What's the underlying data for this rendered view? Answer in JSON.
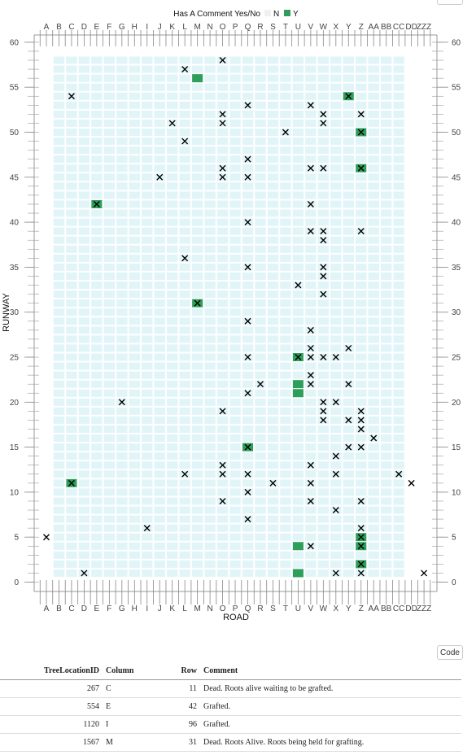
{
  "chart_data": {
    "type": "scatter",
    "legend": {
      "title": "Has A Comment Yes/No",
      "entries": [
        {
          "label": "N",
          "color": "#f0f0f0"
        },
        {
          "label": "Y",
          "color": "#2e9e5b"
        }
      ],
      "placement": "top"
    },
    "xlabel": "ROAD",
    "ylabel": "RUNWAY",
    "categories": [
      "A",
      "B",
      "C",
      "D",
      "E",
      "F",
      "G",
      "H",
      "I",
      "J",
      "K",
      "L",
      "M",
      "N",
      "O",
      "P",
      "Q",
      "R",
      "S",
      "T",
      "U",
      "V",
      "W",
      "X",
      "Y",
      "Z",
      "AA",
      "BB",
      "CC",
      "DD",
      "ZZZ"
    ],
    "ylim": [
      0,
      60
    ],
    "yticks": [
      0,
      5,
      10,
      15,
      20,
      25,
      30,
      35,
      40,
      45,
      50,
      55,
      60
    ],
    "grid_rows": [
      1,
      58
    ],
    "grid_cols": [
      "B",
      "CC"
    ],
    "colors": {
      "grid_cell": "#e1f5f8",
      "comment_yes": "#2e9e5b",
      "marker": "#000000"
    },
    "comment_cells": [
      {
        "x": "C",
        "y": 11
      },
      {
        "x": "E",
        "y": 42
      },
      {
        "x": "M",
        "y": 31
      },
      {
        "x": "M",
        "y": 56
      },
      {
        "x": "Q",
        "y": 15
      },
      {
        "x": "U",
        "y": 1
      },
      {
        "x": "U",
        "y": 4
      },
      {
        "x": "U",
        "y": 21
      },
      {
        "x": "U",
        "y": 22
      },
      {
        "x": "U",
        "y": 25
      },
      {
        "x": "Y",
        "y": 54
      },
      {
        "x": "Z",
        "y": 2
      },
      {
        "x": "Z",
        "y": 4
      },
      {
        "x": "Z",
        "y": 5
      },
      {
        "x": "Z",
        "y": 46
      },
      {
        "x": "Z",
        "y": 50
      }
    ],
    "x_markers": [
      {
        "x": "A",
        "y": 5
      },
      {
        "x": "C",
        "y": 11
      },
      {
        "x": "C",
        "y": 54
      },
      {
        "x": "D",
        "y": 1
      },
      {
        "x": "E",
        "y": 42
      },
      {
        "x": "G",
        "y": 20
      },
      {
        "x": "I",
        "y": 6
      },
      {
        "x": "J",
        "y": 45
      },
      {
        "x": "K",
        "y": 51
      },
      {
        "x": "L",
        "y": 12
      },
      {
        "x": "L",
        "y": 36
      },
      {
        "x": "L",
        "y": 49
      },
      {
        "x": "L",
        "y": 57
      },
      {
        "x": "M",
        "y": 31
      },
      {
        "x": "O",
        "y": 9
      },
      {
        "x": "O",
        "y": 12
      },
      {
        "x": "O",
        "y": 13
      },
      {
        "x": "O",
        "y": 19
      },
      {
        "x": "O",
        "y": 45
      },
      {
        "x": "O",
        "y": 46
      },
      {
        "x": "O",
        "y": 51
      },
      {
        "x": "O",
        "y": 52
      },
      {
        "x": "O",
        "y": 58
      },
      {
        "x": "Q",
        "y": 7
      },
      {
        "x": "Q",
        "y": 10
      },
      {
        "x": "Q",
        "y": 12
      },
      {
        "x": "Q",
        "y": 15
      },
      {
        "x": "Q",
        "y": 21
      },
      {
        "x": "Q",
        "y": 25
      },
      {
        "x": "Q",
        "y": 29
      },
      {
        "x": "Q",
        "y": 35
      },
      {
        "x": "Q",
        "y": 40
      },
      {
        "x": "Q",
        "y": 45
      },
      {
        "x": "Q",
        "y": 47
      },
      {
        "x": "Q",
        "y": 53
      },
      {
        "x": "R",
        "y": 22
      },
      {
        "x": "S",
        "y": 11
      },
      {
        "x": "T",
        "y": 50
      },
      {
        "x": "U",
        "y": 25
      },
      {
        "x": "U",
        "y": 33
      },
      {
        "x": "V",
        "y": 4
      },
      {
        "x": "V",
        "y": 9
      },
      {
        "x": "V",
        "y": 11
      },
      {
        "x": "V",
        "y": 13
      },
      {
        "x": "V",
        "y": 22
      },
      {
        "x": "V",
        "y": 23
      },
      {
        "x": "V",
        "y": 25
      },
      {
        "x": "V",
        "y": 26
      },
      {
        "x": "V",
        "y": 28
      },
      {
        "x": "V",
        "y": 39
      },
      {
        "x": "V",
        "y": 42
      },
      {
        "x": "V",
        "y": 46
      },
      {
        "x": "V",
        "y": 53
      },
      {
        "x": "W",
        "y": 18
      },
      {
        "x": "W",
        "y": 19
      },
      {
        "x": "W",
        "y": 20
      },
      {
        "x": "W",
        "y": 25
      },
      {
        "x": "W",
        "y": 32
      },
      {
        "x": "W",
        "y": 34
      },
      {
        "x": "W",
        "y": 35
      },
      {
        "x": "W",
        "y": 38
      },
      {
        "x": "W",
        "y": 39
      },
      {
        "x": "W",
        "y": 46
      },
      {
        "x": "W",
        "y": 51
      },
      {
        "x": "W",
        "y": 52
      },
      {
        "x": "X",
        "y": 1
      },
      {
        "x": "X",
        "y": 8
      },
      {
        "x": "X",
        "y": 12
      },
      {
        "x": "X",
        "y": 14
      },
      {
        "x": "X",
        "y": 20
      },
      {
        "x": "X",
        "y": 25
      },
      {
        "x": "Y",
        "y": 15
      },
      {
        "x": "Y",
        "y": 18
      },
      {
        "x": "Y",
        "y": 22
      },
      {
        "x": "Y",
        "y": 26
      },
      {
        "x": "Y",
        "y": 54
      },
      {
        "x": "Z",
        "y": 1
      },
      {
        "x": "Z",
        "y": 2
      },
      {
        "x": "Z",
        "y": 4
      },
      {
        "x": "Z",
        "y": 5
      },
      {
        "x": "Z",
        "y": 6
      },
      {
        "x": "Z",
        "y": 9
      },
      {
        "x": "Z",
        "y": 15
      },
      {
        "x": "Z",
        "y": 17
      },
      {
        "x": "Z",
        "y": 18
      },
      {
        "x": "Z",
        "y": 19
      },
      {
        "x": "Z",
        "y": 39
      },
      {
        "x": "Z",
        "y": 46
      },
      {
        "x": "Z",
        "y": 50
      },
      {
        "x": "Z",
        "y": 52
      },
      {
        "x": "AA",
        "y": 16
      },
      {
        "x": "CC",
        "y": 12
      },
      {
        "x": "DD",
        "y": 11
      },
      {
        "x": "ZZZ",
        "y": 1
      }
    ]
  },
  "code_button": {
    "label": "Code"
  },
  "table": {
    "headers": [
      "TreeLocationID",
      "Column",
      "Row",
      "Comment"
    ],
    "rows": [
      {
        "id": "267",
        "column": "C",
        "row": "11",
        "comment": "Dead. Roots alive waiting to be grafted."
      },
      {
        "id": "554",
        "column": "E",
        "row": "42",
        "comment": "Grafted."
      },
      {
        "id": "1120",
        "column": "I",
        "row": "96",
        "comment": "Grafted."
      },
      {
        "id": "1567",
        "column": "M",
        "row": "31",
        "comment": "Dead. Roots Alive. Roots being held for grafting."
      }
    ]
  }
}
